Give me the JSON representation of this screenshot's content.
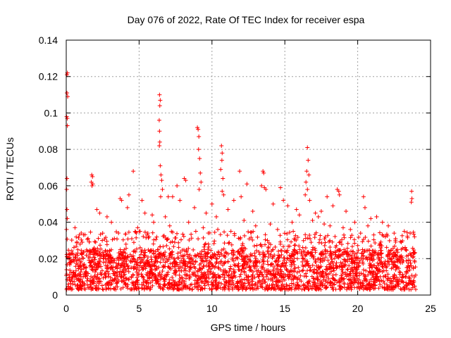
{
  "chart_data": {
    "type": "scatter",
    "title": "Day 076 of 2022, Rate Of TEC Index for receiver espa",
    "xlabel": "GPS time / hours",
    "ylabel": "ROTI / TECUs",
    "xlim": [
      0,
      25
    ],
    "ylim": [
      0,
      0.14
    ],
    "xticks": [
      0,
      5,
      10,
      15,
      20,
      25
    ],
    "yticks": [
      0,
      0.02,
      0.04,
      0.06,
      0.08,
      0.1,
      0.12,
      0.14
    ],
    "xtick_labels": [
      "0",
      "5",
      "10",
      "15",
      "20",
      "25"
    ],
    "ytick_labels": [
      "0",
      "0.02",
      "0.04",
      "0.06",
      "0.08",
      "0.1",
      "0.12",
      "0.14"
    ],
    "grid": true,
    "marker": "+",
    "color": "#ff0000",
    "series": [
      {
        "name": "ROTI",
        "points": [
          [
            0.05,
            0.121
          ],
          [
            0.08,
            0.122
          ],
          [
            0.05,
            0.111
          ],
          [
            0.1,
            0.109
          ],
          [
            0.03,
            0.098
          ],
          [
            0.07,
            0.097
          ],
          [
            0.08,
            0.093
          ],
          [
            0.05,
            0.064
          ],
          [
            0.03,
            0.058
          ],
          [
            0.05,
            0.047
          ],
          [
            0.07,
            0.042
          ],
          [
            0.02,
            0.036
          ],
          [
            1.75,
            0.066
          ],
          [
            1.8,
            0.065
          ],
          [
            1.72,
            0.062
          ],
          [
            1.82,
            0.061
          ],
          [
            1.77,
            0.06
          ],
          [
            6.4,
            0.11
          ],
          [
            6.45,
            0.107
          ],
          [
            6.42,
            0.104
          ],
          [
            6.38,
            0.096
          ],
          [
            6.4,
            0.09
          ],
          [
            6.42,
            0.084
          ],
          [
            6.39,
            0.082
          ],
          [
            6.45,
            0.071
          ],
          [
            6.5,
            0.066
          ],
          [
            6.55,
            0.063
          ],
          [
            6.6,
            0.058
          ],
          [
            6.48,
            0.054
          ],
          [
            9.0,
            0.092
          ],
          [
            9.05,
            0.091
          ],
          [
            9.1,
            0.087
          ],
          [
            9.08,
            0.08
          ],
          [
            9.15,
            0.075
          ],
          [
            9.2,
            0.067
          ],
          [
            9.25,
            0.062
          ],
          [
            9.12,
            0.058
          ],
          [
            10.65,
            0.082
          ],
          [
            10.7,
            0.078
          ],
          [
            10.68,
            0.074
          ],
          [
            10.6,
            0.069
          ],
          [
            10.75,
            0.064
          ],
          [
            10.7,
            0.057
          ],
          [
            10.8,
            0.055
          ],
          [
            16.55,
            0.081
          ],
          [
            16.6,
            0.074
          ],
          [
            16.5,
            0.068
          ],
          [
            16.65,
            0.066
          ],
          [
            16.45,
            0.062
          ],
          [
            16.55,
            0.058
          ],
          [
            16.4,
            0.055
          ],
          [
            16.7,
            0.052
          ],
          [
            23.7,
            0.057
          ],
          [
            23.72,
            0.053
          ],
          [
            23.68,
            0.051
          ],
          [
            4.6,
            0.068
          ],
          [
            7.0,
            0.054
          ],
          [
            8.1,
            0.064
          ],
          [
            8.2,
            0.063
          ],
          [
            7.6,
            0.06
          ],
          [
            11.9,
            0.068
          ],
          [
            12.4,
            0.061
          ],
          [
            13.5,
            0.068
          ],
          [
            13.55,
            0.067
          ],
          [
            13.4,
            0.06
          ],
          [
            13.6,
            0.059
          ],
          [
            13.7,
            0.058
          ],
          [
            14.7,
            0.059
          ],
          [
            17.5,
            0.046
          ],
          [
            17.9,
            0.054
          ],
          [
            18.6,
            0.058
          ],
          [
            18.7,
            0.057
          ],
          [
            18.75,
            0.055
          ],
          [
            20.4,
            0.054
          ],
          [
            20.5,
            0.048
          ],
          [
            21.3,
            0.043
          ],
          [
            22.5,
            0.034
          ],
          [
            3.7,
            0.053
          ],
          [
            3.8,
            0.052
          ],
          [
            4.3,
            0.055
          ],
          [
            4.2,
            0.048
          ],
          [
            5.2,
            0.052
          ],
          [
            5.4,
            0.045
          ],
          [
            5.9,
            0.044
          ],
          [
            7.3,
            0.054
          ],
          [
            7.8,
            0.052
          ],
          [
            8.8,
            0.048
          ],
          [
            9.6,
            0.045
          ],
          [
            10.0,
            0.05
          ],
          [
            10.3,
            0.043
          ],
          [
            11.1,
            0.047
          ],
          [
            11.5,
            0.052
          ],
          [
            12.0,
            0.054
          ],
          [
            12.8,
            0.046
          ],
          [
            14.2,
            0.05
          ],
          [
            14.9,
            0.052
          ],
          [
            15.2,
            0.049
          ],
          [
            15.8,
            0.047
          ],
          [
            17.1,
            0.045
          ],
          [
            17.3,
            0.043
          ],
          [
            18.3,
            0.049
          ],
          [
            19.2,
            0.046
          ],
          [
            19.8,
            0.04
          ],
          [
            20.9,
            0.042
          ],
          [
            21.7,
            0.04
          ],
          [
            22.1,
            0.038
          ],
          [
            23.2,
            0.035
          ],
          [
            2.1,
            0.047
          ],
          [
            2.3,
            0.045
          ],
          [
            2.8,
            0.043
          ],
          [
            3.1,
            0.04
          ],
          [
            0.6,
            0.037
          ],
          [
            1.1,
            0.029
          ],
          [
            0.9,
            0.033
          ],
          [
            1.5,
            0.031
          ],
          [
            2.5,
            0.034
          ],
          [
            3.3,
            0.031
          ],
          [
            4.9,
            0.037
          ],
          [
            5.6,
            0.034
          ],
          [
            6.0,
            0.04
          ],
          [
            6.8,
            0.043
          ],
          [
            7.1,
            0.038
          ],
          [
            8.4,
            0.04
          ],
          [
            9.4,
            0.037
          ],
          [
            10.4,
            0.036
          ],
          [
            11.3,
            0.035
          ],
          [
            12.2,
            0.041
          ],
          [
            13.0,
            0.038
          ],
          [
            14.0,
            0.039
          ],
          [
            14.5,
            0.036
          ],
          [
            15.5,
            0.04
          ],
          [
            16.0,
            0.044
          ],
          [
            16.9,
            0.041
          ],
          [
            17.7,
            0.039
          ],
          [
            18.1,
            0.038
          ],
          [
            19.0,
            0.037
          ],
          [
            19.5,
            0.036
          ],
          [
            20.2,
            0.034
          ],
          [
            20.7,
            0.038
          ],
          [
            21.1,
            0.033
          ],
          [
            21.9,
            0.032
          ],
          [
            22.6,
            0.031
          ],
          [
            23.0,
            0.029
          ],
          [
            23.6,
            0.034
          ],
          [
            23.9,
            0.032
          ]
        ],
        "background_density": {
          "x_range": [
            0,
            24
          ],
          "base_min": 0.003,
          "base_max": 0.025,
          "mid_max": 0.035,
          "count": 2600
        }
      }
    ]
  }
}
